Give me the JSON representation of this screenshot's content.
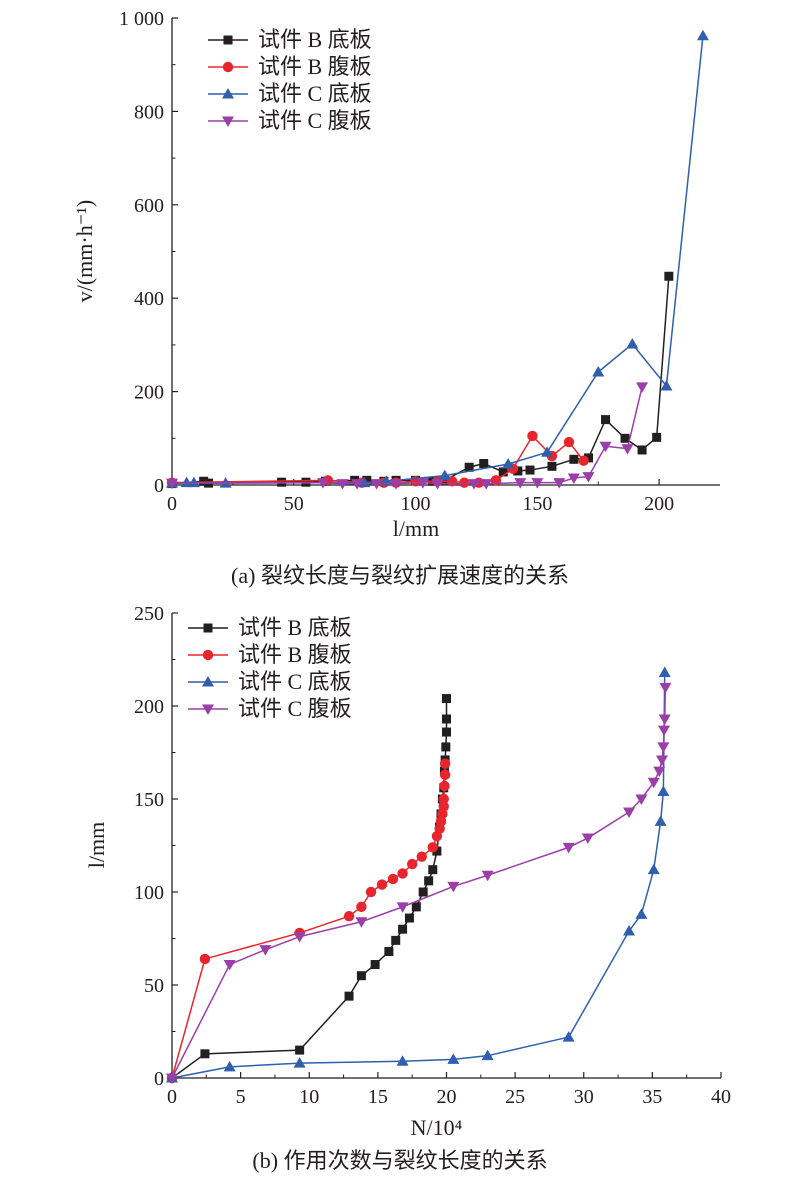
{
  "chart_data": [
    {
      "type": "line",
      "xlabel": "l/mm",
      "ylabel": "v/(mm·h⁻¹)",
      "caption": "(a) 裂纹长度与裂纹扩展速度的关系",
      "xlim": [
        0,
        225
      ],
      "ylim": [
        0,
        1000
      ],
      "xticks": [
        0,
        50,
        100,
        150,
        200
      ],
      "yticks": [
        0,
        200,
        400,
        600,
        800,
        1000
      ],
      "xtick_labels": [
        "0",
        "50",
        "100",
        "150",
        "200"
      ],
      "ytick_labels": [
        "0",
        "200",
        "400",
        "600",
        "800",
        "1 000"
      ],
      "legend_position": "top-left",
      "series": [
        {
          "name": "试件 B 底板",
          "color": "#231f20",
          "marker": "square",
          "x": [
            0,
            13,
            15,
            45,
            55,
            63,
            75,
            80,
            87,
            92,
            100,
            107,
            112,
            122,
            128,
            136,
            142,
            147,
            156,
            165,
            171,
            178,
            186,
            193,
            199,
            204
          ],
          "y": [
            3,
            8,
            4,
            6,
            6,
            8,
            10,
            10,
            8,
            10,
            10,
            8,
            10,
            38,
            46,
            28,
            30,
            32,
            40,
            55,
            58,
            140,
            100,
            75,
            102,
            447
          ]
        },
        {
          "name": "试件 B 腹板",
          "color": "#e8252d",
          "marker": "circle",
          "x": [
            0,
            64,
            78,
            87,
            92,
            100,
            109,
            115,
            120,
            126,
            133,
            140,
            148,
            156,
            163,
            169
          ],
          "y": [
            5,
            10,
            5,
            5,
            5,
            8,
            8,
            8,
            5,
            5,
            10,
            35,
            105,
            62,
            92,
            52
          ]
        },
        {
          "name": "试件 C 底板",
          "color": "#2f5fad",
          "marker": "triangle-up",
          "x": [
            0,
            6,
            9,
            22,
            79,
            88,
            112,
            138,
            154,
            175,
            189,
            203,
            218
          ],
          "y": [
            4,
            5,
            5,
            4,
            5,
            8,
            20,
            45,
            70,
            242,
            302,
            212,
            962
          ]
        },
        {
          "name": "试件 C 腹板",
          "color": "#9b3fa8",
          "marker": "triangle-down",
          "x": [
            0,
            62,
            70,
            76,
            84,
            92,
            103,
            109,
            124,
            129,
            143,
            150,
            159,
            165,
            171,
            178,
            187,
            193
          ],
          "y": [
            4,
            5,
            3,
            3,
            3,
            3,
            5,
            3,
            3,
            3,
            5,
            5,
            5,
            15,
            18,
            83,
            78,
            210
          ]
        }
      ]
    },
    {
      "type": "line",
      "xlabel": "N/10⁴",
      "ylabel": "l/mm",
      "caption": "(b) 作用次数与裂纹长度的关系",
      "xlim": [
        0,
        40
      ],
      "ylim": [
        0,
        250
      ],
      "xticks": [
        0,
        5,
        10,
        15,
        20,
        25,
        30,
        35,
        40
      ],
      "yticks": [
        0,
        50,
        100,
        150,
        200,
        250
      ],
      "xtick_labels": [
        "0",
        "5",
        "10",
        "15",
        "20",
        "25",
        "30",
        "35",
        "40"
      ],
      "ytick_labels": [
        "0",
        "50",
        "100",
        "150",
        "200",
        "250"
      ],
      "legend_position": "top-left",
      "series": [
        {
          "name": "试件 B 底板",
          "color": "#231f20",
          "marker": "square",
          "x": [
            0,
            2.4,
            9.3,
            12.9,
            13.8,
            14.8,
            15.8,
            16.3,
            16.8,
            17.3,
            17.8,
            18.3,
            18.7,
            19.0,
            19.3,
            19.5,
            19.6,
            19.7,
            19.8,
            19.85,
            19.9,
            19.95,
            20.0,
            20.0,
            20.0
          ],
          "y": [
            0,
            13,
            15,
            44,
            55,
            61,
            68,
            74,
            80,
            86,
            92,
            100,
            106,
            112,
            122,
            135,
            142,
            150,
            156,
            165,
            171,
            178,
            186,
            193,
            204
          ]
        },
        {
          "name": "试件 B 腹板",
          "color": "#e8252d",
          "marker": "circle",
          "x": [
            0,
            2.4,
            9.3,
            12.9,
            13.8,
            14.5,
            15.3,
            16.1,
            16.8,
            17.5,
            18.2,
            19.0,
            19.3,
            19.5,
            19.6,
            19.7,
            19.8,
            19.8,
            19.85,
            19.9,
            19.9
          ],
          "y": [
            0,
            64,
            78,
            87,
            92,
            100,
            104,
            107,
            110,
            115,
            119,
            124,
            130,
            134,
            138,
            142,
            146,
            150,
            157,
            163,
            169
          ]
        },
        {
          "name": "试件 C 底板",
          "color": "#2f5fad",
          "marker": "triangle-up",
          "x": [
            0,
            4.2,
            9.3,
            16.8,
            20.5,
            23.0,
            28.9,
            33.3,
            34.2,
            35.1,
            35.6,
            35.8,
            35.9
          ],
          "y": [
            0,
            6,
            8,
            9,
            10,
            12,
            22,
            79,
            88,
            112,
            138,
            154,
            218
          ]
        },
        {
          "name": "试件 C 腹板",
          "color": "#9b3fa8",
          "marker": "triangle-down",
          "x": [
            0,
            4.2,
            6.8,
            9.3,
            13.8,
            16.8,
            20.5,
            23.0,
            28.9,
            30.3,
            33.3,
            34.2,
            35.1,
            35.5,
            35.7,
            35.8,
            35.85,
            35.9,
            35.95
          ],
          "y": [
            0,
            61,
            69,
            76,
            84,
            92,
            103,
            109,
            124,
            129,
            143,
            150,
            159,
            165,
            171,
            178,
            187,
            193,
            210
          ]
        }
      ]
    }
  ]
}
